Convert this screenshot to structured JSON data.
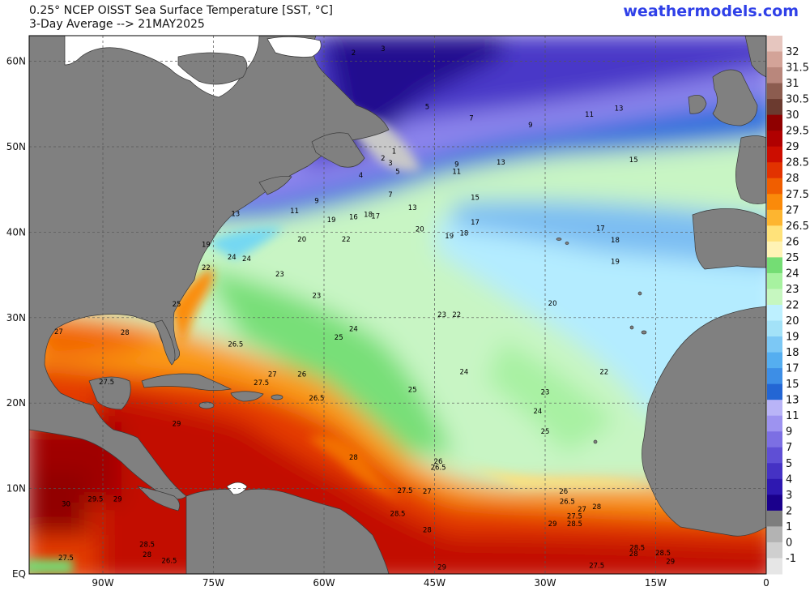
{
  "header": {
    "title": "0.25° NCEP OISST Sea Surface Temperature [SST, °C]",
    "subtitle": "3-Day Average --> 21MAY2025",
    "brand": "weathermodels.com"
  },
  "map": {
    "lon_range": [
      -100,
      0
    ],
    "lat_range": [
      0,
      63
    ],
    "lon_ticks": [
      {
        "v": -90,
        "label": "90W"
      },
      {
        "v": -75,
        "label": "75W"
      },
      {
        "v": -60,
        "label": "60W"
      },
      {
        "v": -45,
        "label": "45W"
      },
      {
        "v": -30,
        "label": "30W"
      },
      {
        "v": -15,
        "label": "15W"
      },
      {
        "v": 0,
        "label": "0"
      }
    ],
    "lat_ticks": [
      {
        "v": 0,
        "label": "EQ"
      },
      {
        "v": 10,
        "label": "10N"
      },
      {
        "v": 20,
        "label": "20N"
      },
      {
        "v": 30,
        "label": "30N"
      },
      {
        "v": 40,
        "label": "40N"
      },
      {
        "v": 50,
        "label": "50N"
      },
      {
        "v": 60,
        "label": "60N"
      }
    ],
    "land_color": "#808080",
    "sst_labels": [
      {
        "t": "27",
        "lon": -96,
        "lat": 28.1
      },
      {
        "t": "28",
        "lon": -87,
        "lat": 28
      },
      {
        "t": "26.5",
        "lon": -72,
        "lat": 26.6
      },
      {
        "t": "27.5",
        "lon": -89.5,
        "lat": 22.2
      },
      {
        "t": "27",
        "lon": -67,
        "lat": 23.1
      },
      {
        "t": "27.5",
        "lon": -68.5,
        "lat": 22.1
      },
      {
        "t": "26",
        "lon": -63,
        "lat": 23.1
      },
      {
        "t": "26.5",
        "lon": -61,
        "lat": 20.3
      },
      {
        "t": "29",
        "lon": -80,
        "lat": 17.3
      },
      {
        "t": "28",
        "lon": -56,
        "lat": 13.4
      },
      {
        "t": "29.5",
        "lon": -91,
        "lat": 8.5
      },
      {
        "t": "29",
        "lon": -88,
        "lat": 8.5
      },
      {
        "t": "30",
        "lon": -95,
        "lat": 7.9
      },
      {
        "t": "28.5",
        "lon": -84,
        "lat": 3.2
      },
      {
        "t": "28",
        "lon": -84,
        "lat": 2
      },
      {
        "t": "27.5",
        "lon": -95,
        "lat": 1.6
      },
      {
        "t": "26.5",
        "lon": -81,
        "lat": 1.3
      },
      {
        "t": "27.5",
        "lon": -49,
        "lat": 9.5
      },
      {
        "t": "27",
        "lon": -46,
        "lat": 9.4
      },
      {
        "t": "28.5",
        "lon": -50,
        "lat": 6.8
      },
      {
        "t": "28",
        "lon": -46,
        "lat": 4.9
      },
      {
        "t": "29",
        "lon": -44,
        "lat": 0.5
      },
      {
        "t": "26",
        "lon": -44.5,
        "lat": 12.9
      },
      {
        "t": "26.5",
        "lon": -44.5,
        "lat": 12.2
      },
      {
        "t": "26",
        "lon": -27.5,
        "lat": 9.4
      },
      {
        "t": "26.5",
        "lon": -27,
        "lat": 8.2
      },
      {
        "t": "27",
        "lon": -25,
        "lat": 7.3
      },
      {
        "t": "28",
        "lon": -23,
        "lat": 7.6
      },
      {
        "t": "27.5",
        "lon": -26,
        "lat": 6.5
      },
      {
        "t": "28.5",
        "lon": -26,
        "lat": 5.6
      },
      {
        "t": "29",
        "lon": -29,
        "lat": 5.6
      },
      {
        "t": "27.5",
        "lon": -23,
        "lat": 0.7
      },
      {
        "t": "28.5",
        "lon": -17.5,
        "lat": 2.8
      },
      {
        "t": "28",
        "lon": -18,
        "lat": 2.1
      },
      {
        "t": "28.5",
        "lon": -14,
        "lat": 2.2
      },
      {
        "t": "29",
        "lon": -13,
        "lat": 1.2
      },
      {
        "t": "25",
        "lon": -80,
        "lat": 31.3
      },
      {
        "t": "24",
        "lon": -72.5,
        "lat": 36.8
      },
      {
        "t": "24",
        "lon": -70.5,
        "lat": 36.6
      },
      {
        "t": "23",
        "lon": -66,
        "lat": 34.8
      },
      {
        "t": "23",
        "lon": -61,
        "lat": 32.3
      },
      {
        "t": "25",
        "lon": -58,
        "lat": 27.4
      },
      {
        "t": "24",
        "lon": -56,
        "lat": 28.4
      },
      {
        "t": "23",
        "lon": -44,
        "lat": 30.1
      },
      {
        "t": "22",
        "lon": -42,
        "lat": 30.1
      },
      {
        "t": "24",
        "lon": -41,
        "lat": 23.4
      },
      {
        "t": "25",
        "lon": -48,
        "lat": 21.3
      },
      {
        "t": "23",
        "lon": -30,
        "lat": 21
      },
      {
        "t": "22",
        "lon": -22,
        "lat": 23.4
      },
      {
        "t": "24",
        "lon": -31,
        "lat": 18.8
      },
      {
        "t": "25",
        "lon": -30,
        "lat": 16.4
      },
      {
        "t": "20",
        "lon": -29,
        "lat": 31.4
      },
      {
        "t": "19",
        "lon": -76,
        "lat": 38.3
      },
      {
        "t": "22",
        "lon": -76,
        "lat": 35.6
      },
      {
        "t": "20",
        "lon": -63,
        "lat": 38.9
      },
      {
        "t": "22",
        "lon": -57,
        "lat": 38.9
      },
      {
        "t": "19",
        "lon": -59,
        "lat": 41.2
      },
      {
        "t": "16",
        "lon": -56,
        "lat": 41.5
      },
      {
        "t": "18",
        "lon": -54,
        "lat": 41.8
      },
      {
        "t": "17",
        "lon": -53,
        "lat": 41.6
      },
      {
        "t": "11",
        "lon": -64,
        "lat": 42.2
      },
      {
        "t": "13",
        "lon": -72,
        "lat": 41.9
      },
      {
        "t": "9",
        "lon": -61,
        "lat": 43.4
      },
      {
        "t": "7",
        "lon": -51,
        "lat": 44.1
      },
      {
        "t": "13",
        "lon": -48,
        "lat": 42.6
      },
      {
        "t": "20",
        "lon": -47,
        "lat": 40.1
      },
      {
        "t": "19",
        "lon": -43,
        "lat": 39.3
      },
      {
        "t": "18",
        "lon": -41,
        "lat": 39.6
      },
      {
        "t": "17",
        "lon": -39.5,
        "lat": 40.9
      },
      {
        "t": "15",
        "lon": -39.5,
        "lat": 43.8
      },
      {
        "t": "11",
        "lon": -42,
        "lat": 46.8
      },
      {
        "t": "9",
        "lon": -42,
        "lat": 47.7
      },
      {
        "t": "13",
        "lon": -36,
        "lat": 47.9
      },
      {
        "t": "4",
        "lon": -55,
        "lat": 46.4
      },
      {
        "t": "5",
        "lon": -50,
        "lat": 46.8
      },
      {
        "t": "1",
        "lon": -50.5,
        "lat": 49.2
      },
      {
        "t": "2",
        "lon": -52,
        "lat": 48.4
      },
      {
        "t": "3",
        "lon": -51,
        "lat": 47.8
      },
      {
        "t": "5",
        "lon": -46,
        "lat": 54.4
      },
      {
        "t": "7",
        "lon": -40,
        "lat": 53.1
      },
      {
        "t": "9",
        "lon": -32,
        "lat": 52.3
      },
      {
        "t": "11",
        "lon": -24,
        "lat": 53.5
      },
      {
        "t": "13",
        "lon": -20,
        "lat": 54.2
      },
      {
        "t": "15",
        "lon": -18,
        "lat": 48.2
      },
      {
        "t": "17",
        "lon": -22.5,
        "lat": 40.2
      },
      {
        "t": "18",
        "lon": -20.5,
        "lat": 38.8
      },
      {
        "t": "19",
        "lon": -20.5,
        "lat": 36.3
      },
      {
        "t": "2",
        "lon": -56,
        "lat": 60.7
      },
      {
        "t": "3",
        "lon": -52,
        "lat": 61.2
      }
    ]
  },
  "colorbar": {
    "levels": [
      "32",
      "31.5",
      "31",
      "30.5",
      "30",
      "29.5",
      "29",
      "28.5",
      "28",
      "27.5",
      "27",
      "26.5",
      "26",
      "25",
      "24",
      "23",
      "22",
      "20",
      "19",
      "18",
      "17",
      "15",
      "13",
      "11",
      "9",
      "7",
      "5",
      "4",
      "3",
      "2",
      "1",
      "0",
      "-1"
    ],
    "colors": [
      "#e6c6bf",
      "#d3a398",
      "#b9877c",
      "#8c5c4f",
      "#6b3a2f",
      "#8f0000",
      "#b00000",
      "#cc0d00",
      "#e23200",
      "#f05e00",
      "#fa8a0a",
      "#fdb530",
      "#ffe27a",
      "#fff3b5",
      "#74dd74",
      "#a7f2a0",
      "#c6f7c0",
      "#bdf0ff",
      "#a3e2f8",
      "#7cc8f5",
      "#55aef0",
      "#3d8ee6",
      "#2366d4",
      "#b9b4f7",
      "#9d93f0",
      "#7c6fe3",
      "#5f4fd5",
      "#4532c4",
      "#2e18b1",
      "#1a008c",
      "#7d7d7d",
      "#b3b3b3",
      "#cfcfcf",
      "#e6e6e6"
    ]
  }
}
